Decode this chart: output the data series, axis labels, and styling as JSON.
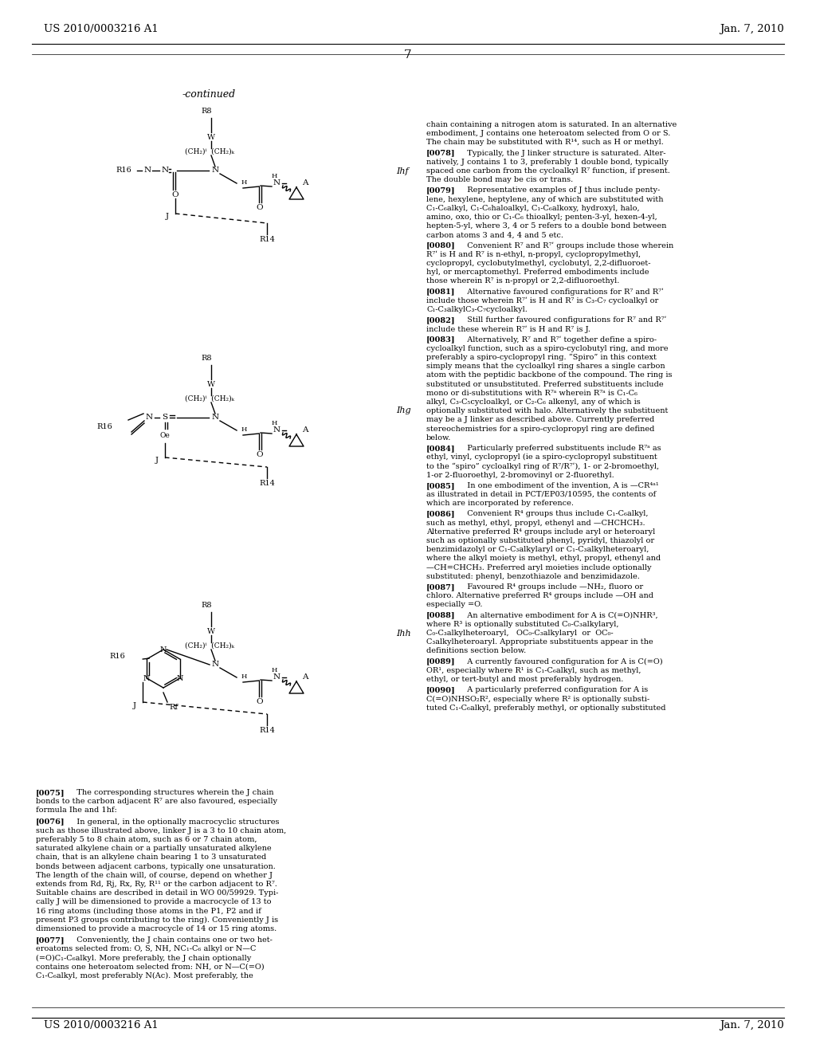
{
  "page_header_left": "US 2010/0003216 A1",
  "page_header_right": "Jan. 7, 2010",
  "page_number": "7",
  "continued_label": "-continued",
  "structure_labels": [
    "Ihf",
    "Ihg",
    "Ihh"
  ],
  "background_color": "#ffffff",
  "text_color": "#000000",
  "fig_w": 10.24,
  "fig_h": 13.2,
  "dpi": 100
}
